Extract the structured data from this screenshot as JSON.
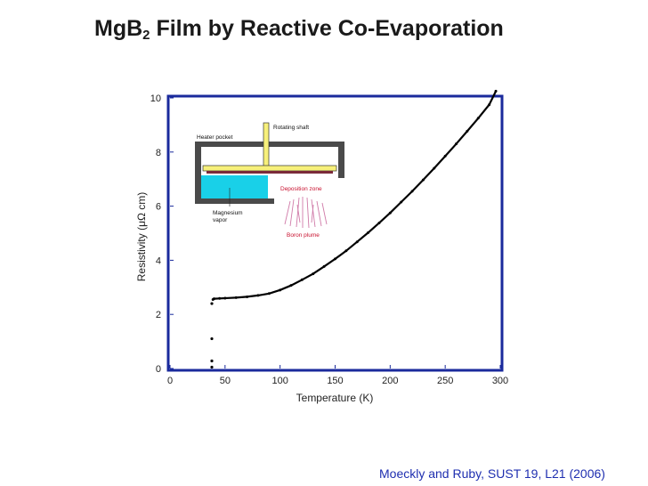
{
  "title": {
    "main": "MgB",
    "subscript": "2",
    "rest": " Film by Reactive Co-Evaporation"
  },
  "citation": "Moeckly and Ruby, SUST 19, L21 (2006)",
  "colors": {
    "frame": "#1a2a9c",
    "data": "#000000",
    "heater": "#4a4a4a",
    "shaft": "#f7f07a",
    "vapor": "#19d0e8",
    "plume": "#d07aa8",
    "citation": "#1f2fb0",
    "inset_red": "#c8102e"
  },
  "chart_data": {
    "type": "scatter",
    "xlabel": "Temperature (K)",
    "ylabel": "Resistivity (μΩ cm)",
    "xlim": [
      0,
      300
    ],
    "ylim": [
      0,
      10
    ],
    "xticks": [
      0,
      50,
      100,
      150,
      200,
      250,
      300
    ],
    "yticks": [
      0,
      2,
      4,
      6,
      8,
      10
    ],
    "xtick_labels": [
      "0",
      "50",
      "100",
      "150",
      "200",
      "250",
      "300"
    ],
    "ytick_labels": [
      "0",
      "2",
      "4",
      "6",
      "8",
      "10"
    ],
    "grid": false,
    "series": [
      {
        "x": [
          39,
          40,
          45,
          50,
          60,
          70,
          80,
          90,
          100,
          110,
          120,
          130,
          140,
          150,
          160,
          170,
          180,
          190,
          200,
          210,
          220,
          230,
          240,
          250,
          260,
          270,
          280,
          290,
          296
        ],
        "y": [
          2.55,
          2.58,
          2.59,
          2.6,
          2.62,
          2.65,
          2.7,
          2.77,
          2.9,
          3.07,
          3.28,
          3.5,
          3.77,
          4.05,
          4.35,
          4.68,
          5.02,
          5.38,
          5.75,
          6.15,
          6.55,
          6.97,
          7.4,
          7.85,
          8.3,
          8.77,
          9.25,
          9.75,
          10.25
        ]
      },
      {
        "x": [
          38,
          38,
          38,
          38
        ],
        "y": [
          2.4,
          1.1,
          0.28,
          0.05
        ]
      }
    ],
    "inset": {
      "labels": {
        "heater_pocket": "Heater pocket",
        "rotating_shaft": "Rotating shaft",
        "deposition_zone": "Deposition zone",
        "magnesium_vapor_1": "Magnesium",
        "magnesium_vapor_2": "vapor",
        "boron_plume": "Boron plume"
      }
    }
  }
}
